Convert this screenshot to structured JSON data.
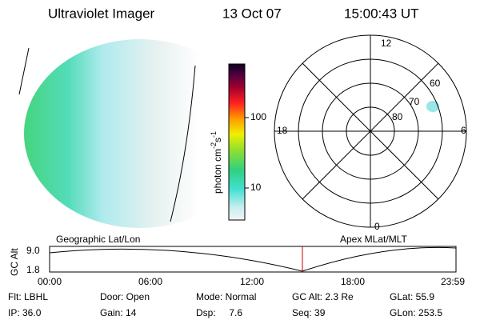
{
  "header": {
    "instrument": "Ultraviolet Imager",
    "date": "13 Oct 07",
    "time": "15:00:43 UT"
  },
  "colorbar": {
    "label": "photon cm",
    "exp1": "-2",
    "unit2": "s",
    "exp2": "-1",
    "ticks": [
      "100",
      "10"
    ]
  },
  "polar": {
    "mlt_top": "12",
    "mlt_left": "18",
    "mlt_right": "6",
    "mlt_bottom": "0",
    "lat_labels": [
      "60",
      "70",
      "80"
    ]
  },
  "timeline": {
    "left_title": "Geographic Lat/Lon",
    "right_title": "Apex MLat/MLT",
    "y_label": "GC Alt",
    "y_ticks": [
      "9.0",
      "1.8"
    ],
    "x_ticks": [
      "00:00",
      "06:00",
      "12:00",
      "18:00",
      "23:59"
    ]
  },
  "info": [
    [
      "Flt: LBHL",
      "Door: Open",
      "Mode: Normal",
      "GC Alt: 2.3 Re",
      "GLat: 55.9"
    ],
    [
      "IP: 36.0",
      "Gain: 14",
      "Dsp:     7.6",
      "Seq: 39",
      "GLon: 253.5"
    ]
  ]
}
